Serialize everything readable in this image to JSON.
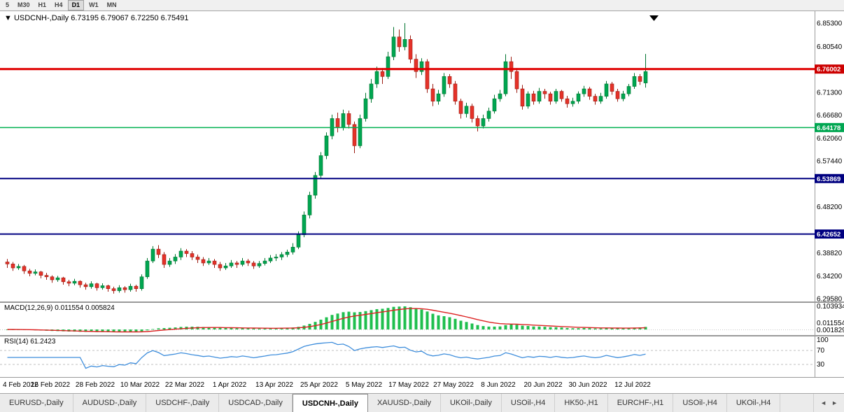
{
  "toolbar": {
    "timeframes": [
      "5",
      "M30",
      "H1",
      "H4",
      "D1",
      "W1",
      "MN"
    ],
    "active": "D1"
  },
  "chart": {
    "symbol_title": "USDCNH-,Daily",
    "ohlc": {
      "open": "6.73195",
      "high": "6.79067",
      "low": "6.72250",
      "close": "6.75491"
    }
  },
  "chart_data": {
    "type": "candlestick",
    "symbol": "USDCNH",
    "timeframe": "Daily",
    "title": "USDCNH-,Daily 6.73195 6.79067 6.72250 6.75491",
    "price_min": 6.2958,
    "price_max": 6.853,
    "price_labels": [
      "6.85300",
      "6.80540",
      "6.71300",
      "6.66680",
      "6.62060",
      "6.57440",
      "6.48200",
      "6.38820",
      "6.34200",
      "6.29580"
    ],
    "levels": [
      {
        "price": 6.76002,
        "label": "6.76002",
        "line_color": "#e00000",
        "line_width": 3,
        "badge_color": "#cc0000",
        "name": "resistance-line-red"
      },
      {
        "price": 6.64178,
        "label": "6.64178",
        "line_color": "#00b050",
        "line_width": 1.5,
        "badge_color": "#00a651",
        "name": "support-line-green"
      },
      {
        "price": 6.53869,
        "label": "6.53869",
        "line_color": "#000080",
        "line_width": 2,
        "badge_color": "#000080",
        "name": "support-line-navy-1"
      },
      {
        "price": 6.42652,
        "label": "6.42652",
        "line_color": "#000080",
        "line_width": 2,
        "badge_color": "#000080",
        "name": "support-line-navy-2"
      }
    ],
    "dates": {
      "labels": [
        "4 Feb 2022",
        "16 Feb 2022",
        "28 Feb 2022",
        "10 Mar 2022",
        "22 Mar 2022",
        "1 Apr 2022",
        "13 Apr 2022",
        "25 Apr 2022",
        "5 May 2022",
        "17 May 2022",
        "27 May 2022",
        "8 Jun 2022",
        "20 Jun 2022",
        "30 Jun 2022",
        "12 Jul 2022"
      ],
      "indices": [
        0,
        8,
        16,
        24,
        32,
        40,
        48,
        56,
        64,
        72,
        80,
        88,
        96,
        104,
        112
      ]
    },
    "colors": {
      "up": "#00a651",
      "down": "#e53229",
      "up_edge": "#00752f",
      "down_edge": "#9c1c12"
    },
    "candles": [
      [
        6.37,
        6.376,
        6.358,
        6.366
      ],
      [
        6.366,
        6.37,
        6.352,
        6.358
      ],
      [
        6.358,
        6.366,
        6.354,
        6.361
      ],
      [
        6.361,
        6.364,
        6.346,
        6.352
      ],
      [
        6.352,
        6.356,
        6.341,
        6.347
      ],
      [
        6.347,
        6.355,
        6.343,
        6.35
      ],
      [
        6.35,
        6.352,
        6.337,
        6.343
      ],
      [
        6.343,
        6.348,
        6.334,
        6.34
      ],
      [
        6.34,
        6.343,
        6.328,
        6.334
      ],
      [
        6.334,
        6.342,
        6.33,
        6.338
      ],
      [
        6.338,
        6.34,
        6.324,
        6.33
      ],
      [
        6.33,
        6.334,
        6.321,
        6.327
      ],
      [
        6.327,
        6.336,
        6.323,
        6.331
      ],
      [
        6.331,
        6.333,
        6.318,
        6.324
      ],
      [
        6.324,
        6.328,
        6.314,
        6.32
      ],
      [
        6.32,
        6.331,
        6.316,
        6.326
      ],
      [
        6.326,
        6.328,
        6.312,
        6.318
      ],
      [
        6.318,
        6.327,
        6.314,
        6.322
      ],
      [
        6.322,
        6.324,
        6.31,
        6.316
      ],
      [
        6.316,
        6.32,
        6.306,
        6.312
      ],
      [
        6.312,
        6.323,
        6.308,
        6.318
      ],
      [
        6.318,
        6.321,
        6.308,
        6.314
      ],
      [
        6.314,
        6.326,
        6.31,
        6.321
      ],
      [
        6.321,
        6.324,
        6.31,
        6.316
      ],
      [
        6.316,
        6.345,
        6.312,
        6.34
      ],
      [
        6.34,
        6.378,
        6.336,
        6.372
      ],
      [
        6.372,
        6.402,
        6.368,
        6.396
      ],
      [
        6.396,
        6.404,
        6.378,
        6.385
      ],
      [
        6.385,
        6.39,
        6.358,
        6.365
      ],
      [
        6.365,
        6.378,
        6.36,
        6.372
      ],
      [
        6.372,
        6.386,
        6.366,
        6.38
      ],
      [
        6.38,
        6.398,
        6.374,
        6.392
      ],
      [
        6.392,
        6.396,
        6.38,
        6.387
      ],
      [
        6.387,
        6.392,
        6.374,
        6.38
      ],
      [
        6.38,
        6.385,
        6.368,
        6.375
      ],
      [
        6.375,
        6.38,
        6.362,
        6.368
      ],
      [
        6.368,
        6.378,
        6.364,
        6.372
      ],
      [
        6.372,
        6.376,
        6.358,
        6.365
      ],
      [
        6.365,
        6.37,
        6.352,
        6.358
      ],
      [
        6.358,
        6.368,
        6.354,
        6.362
      ],
      [
        6.362,
        6.374,
        6.358,
        6.368
      ],
      [
        6.368,
        6.372,
        6.358,
        6.365
      ],
      [
        6.365,
        6.378,
        6.361,
        6.372
      ],
      [
        6.372,
        6.376,
        6.362,
        6.368
      ],
      [
        6.368,
        6.372,
        6.356,
        6.362
      ],
      [
        6.362,
        6.372,
        6.358,
        6.367
      ],
      [
        6.367,
        6.378,
        6.363,
        6.372
      ],
      [
        6.372,
        6.384,
        6.368,
        6.378
      ],
      [
        6.378,
        6.386,
        6.372,
        6.38
      ],
      [
        6.38,
        6.39,
        6.374,
        6.385
      ],
      [
        6.385,
        6.395,
        6.38,
        6.39
      ],
      [
        6.39,
        6.408,
        6.385,
        6.4
      ],
      [
        6.4,
        6.432,
        6.396,
        6.425
      ],
      [
        6.425,
        6.472,
        6.42,
        6.465
      ],
      [
        6.465,
        6.512,
        6.458,
        6.505
      ],
      [
        6.505,
        6.552,
        6.498,
        6.545
      ],
      [
        6.545,
        6.592,
        6.538,
        6.585
      ],
      [
        6.585,
        6.632,
        6.578,
        6.625
      ],
      [
        6.625,
        6.668,
        6.618,
        6.66
      ],
      [
        6.66,
        6.672,
        6.632,
        6.642
      ],
      [
        6.642,
        6.678,
        6.636,
        6.67
      ],
      [
        6.67,
        6.676,
        6.64,
        6.648
      ],
      [
        6.648,
        6.654,
        6.59,
        6.605
      ],
      [
        6.605,
        6.668,
        6.6,
        6.66
      ],
      [
        6.66,
        6.712,
        6.654,
        6.7
      ],
      [
        6.7,
        6.74,
        6.692,
        6.73
      ],
      [
        6.73,
        6.765,
        6.722,
        6.755
      ],
      [
        6.755,
        6.762,
        6.73,
        6.745
      ],
      [
        6.745,
        6.795,
        6.74,
        6.785
      ],
      [
        6.785,
        6.845,
        6.778,
        6.825
      ],
      [
        6.825,
        6.84,
        6.795,
        6.805
      ],
      [
        6.805,
        6.853,
        6.798,
        6.82
      ],
      [
        6.82,
        6.828,
        6.772,
        6.78
      ],
      [
        6.78,
        6.79,
        6.742,
        6.755
      ],
      [
        6.755,
        6.782,
        6.748,
        6.775
      ],
      [
        6.775,
        6.78,
        6.712,
        6.72
      ],
      [
        6.72,
        6.73,
        6.685,
        6.695
      ],
      [
        6.695,
        6.718,
        6.688,
        6.71
      ],
      [
        6.71,
        6.752,
        6.704,
        6.745
      ],
      [
        6.745,
        6.75,
        6.722,
        6.73
      ],
      [
        6.73,
        6.736,
        6.688,
        6.695
      ],
      [
        6.695,
        6.7,
        6.66,
        6.67
      ],
      [
        6.67,
        6.692,
        6.662,
        6.685
      ],
      [
        6.685,
        6.69,
        6.652,
        6.66
      ],
      [
        6.66,
        6.666,
        6.634,
        6.645
      ],
      [
        6.645,
        6.668,
        6.64,
        6.66
      ],
      [
        6.66,
        6.682,
        6.654,
        6.675
      ],
      [
        6.675,
        6.708,
        6.67,
        6.7
      ],
      [
        6.7,
        6.718,
        6.694,
        6.71
      ],
      [
        6.71,
        6.79,
        6.705,
        6.775
      ],
      [
        6.775,
        6.785,
        6.74,
        6.755
      ],
      [
        6.755,
        6.762,
        6.712,
        6.72
      ],
      [
        6.72,
        6.728,
        6.678,
        6.685
      ],
      [
        6.685,
        6.715,
        6.68,
        6.71
      ],
      [
        6.71,
        6.716,
        6.688,
        6.695
      ],
      [
        6.695,
        6.722,
        6.69,
        6.715
      ],
      [
        6.715,
        6.72,
        6.7,
        6.71
      ],
      [
        6.71,
        6.714,
        6.688,
        6.695
      ],
      [
        6.695,
        6.72,
        6.69,
        6.715
      ],
      [
        6.715,
        6.718,
        6.694,
        6.7
      ],
      [
        6.7,
        6.706,
        6.682,
        6.69
      ],
      [
        6.69,
        6.702,
        6.684,
        6.695
      ],
      [
        6.695,
        6.715,
        6.69,
        6.71
      ],
      [
        6.71,
        6.726,
        6.704,
        6.72
      ],
      [
        6.72,
        6.724,
        6.698,
        6.705
      ],
      [
        6.705,
        6.71,
        6.688,
        6.695
      ],
      [
        6.695,
        6.712,
        6.69,
        6.705
      ],
      [
        6.705,
        6.736,
        6.7,
        6.73
      ],
      [
        6.73,
        6.734,
        6.708,
        6.715
      ],
      [
        6.715,
        6.72,
        6.694,
        6.7
      ],
      [
        6.7,
        6.716,
        6.695,
        6.71
      ],
      [
        6.71,
        6.73,
        6.705,
        6.725
      ],
      [
        6.725,
        6.752,
        6.72,
        6.745
      ],
      [
        6.745,
        6.75,
        6.728,
        6.735
      ],
      [
        6.73195,
        6.79067,
        6.7225,
        6.75491
      ]
    ]
  },
  "indicators": {
    "macd": {
      "label": "MACD(12,26,9)",
      "values": "0.011554 0.005824",
      "axis_labels": [
        {
          "text": "0.103934",
          "value": 0.103934
        },
        {
          "text": "0.011554",
          "value": 0.011554
        },
        {
          "text": "0.001829",
          "value": 0.001829
        }
      ],
      "params": {
        "fast": 12,
        "slow": 26,
        "signal": 9
      },
      "histogram_color": "#1fbf4e",
      "signal_color": "#dd2222"
    },
    "rsi": {
      "label": "RSI(14)",
      "value": "61.2423",
      "period": 14,
      "axis_labels": [
        {
          "text": "100",
          "value": 100
        },
        {
          "text": "70",
          "value": 70
        },
        {
          "text": "30",
          "value": 30
        }
      ],
      "guide_levels": [
        70,
        30
      ],
      "line_color": "#3f8edc"
    }
  },
  "tabs": [
    {
      "label": "EURUSD-,Daily",
      "active": false
    },
    {
      "label": "AUDUSD-,Daily",
      "active": false
    },
    {
      "label": "USDCHF-,Daily",
      "active": false
    },
    {
      "label": "USDCAD-,Daily",
      "active": false
    },
    {
      "label": "USDCNH-,Daily",
      "active": true
    },
    {
      "label": "XAUUSD-,Daily",
      "active": false
    },
    {
      "label": "UKOil-,Daily",
      "active": false
    },
    {
      "label": "USOil-,H4",
      "active": false
    },
    {
      "label": "HK50-,H1",
      "active": false
    },
    {
      "label": "EURCHF-,H1",
      "active": false
    },
    {
      "label": "USOil-,H4",
      "active": false
    },
    {
      "label": "UKOil-,H4",
      "active": false
    }
  ],
  "tab_arrows": {
    "left": "◄",
    "right": "►"
  }
}
